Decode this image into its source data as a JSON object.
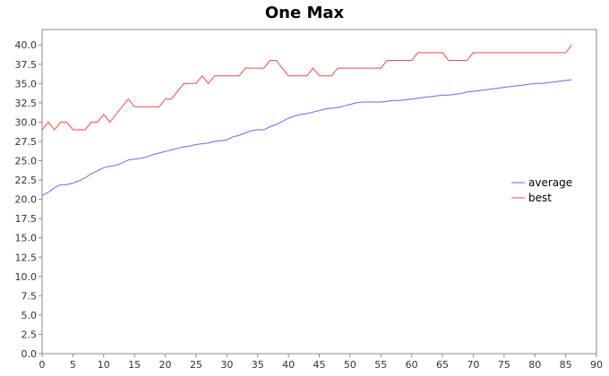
{
  "chart_data": {
    "type": "line",
    "title": "One Max",
    "xlabel": "",
    "ylabel": "",
    "xlim": [
      0,
      90
    ],
    "ylim": [
      0,
      42
    ],
    "x_ticks": [
      "0",
      "5",
      "10",
      "15",
      "20",
      "25",
      "30",
      "35",
      "40",
      "45",
      "50",
      "55",
      "60",
      "65",
      "70",
      "75",
      "80",
      "85",
      "90"
    ],
    "y_ticks": [
      "0.0",
      "2.5",
      "5.0",
      "7.5",
      "10.0",
      "12.5",
      "15.0",
      "17.5",
      "20.0",
      "22.5",
      "25.0",
      "27.5",
      "30.0",
      "32.5",
      "35.0",
      "37.5",
      "40.0"
    ],
    "grid": false,
    "legend_position": "right",
    "series": [
      {
        "name": "average",
        "color": "#6666ff",
        "x": [
          0,
          1,
          2,
          3,
          4,
          5,
          6,
          7,
          8,
          9,
          10,
          11,
          12,
          13,
          14,
          15,
          16,
          17,
          18,
          19,
          20,
          21,
          22,
          23,
          24,
          25,
          26,
          27,
          28,
          29,
          30,
          31,
          32,
          33,
          34,
          35,
          36,
          37,
          38,
          39,
          40,
          41,
          42,
          43,
          44,
          45,
          46,
          47,
          48,
          49,
          50,
          51,
          52,
          53,
          54,
          55,
          56,
          57,
          58,
          59,
          60,
          61,
          62,
          63,
          64,
          65,
          66,
          67,
          68,
          69,
          70,
          71,
          72,
          73,
          74,
          75,
          76,
          77,
          78,
          79,
          80,
          81,
          82,
          83,
          84,
          85,
          86
        ],
        "y": [
          20.5,
          20.9,
          21.5,
          21.9,
          21.9,
          22.1,
          22.4,
          22.8,
          23.3,
          23.7,
          24.1,
          24.3,
          24.4,
          24.7,
          25.1,
          25.2,
          25.3,
          25.5,
          25.8,
          26.0,
          26.2,
          26.4,
          26.6,
          26.8,
          26.9,
          27.1,
          27.2,
          27.3,
          27.5,
          27.6,
          27.7,
          28.1,
          28.3,
          28.6,
          28.9,
          29.0,
          29.0,
          29.4,
          29.7,
          30.1,
          30.5,
          30.8,
          31.0,
          31.1,
          31.3,
          31.5,
          31.7,
          31.8,
          31.9,
          32.1,
          32.3,
          32.5,
          32.6,
          32.6,
          32.6,
          32.6,
          32.7,
          32.8,
          32.8,
          32.9,
          33.0,
          33.1,
          33.2,
          33.3,
          33.4,
          33.5,
          33.5,
          33.6,
          33.7,
          33.9,
          34.0,
          34.1,
          34.2,
          34.3,
          34.4,
          34.5,
          34.6,
          34.7,
          34.8,
          34.9,
          35.0,
          35.0,
          35.1,
          35.2,
          35.3,
          35.4,
          35.5
        ]
      },
      {
        "name": "best",
        "color": "#ff4444",
        "x": [
          0,
          1,
          2,
          3,
          4,
          5,
          6,
          7,
          8,
          9,
          10,
          11,
          12,
          13,
          14,
          15,
          16,
          17,
          18,
          19,
          20,
          21,
          22,
          23,
          24,
          25,
          26,
          27,
          28,
          29,
          30,
          31,
          32,
          33,
          34,
          35,
          36,
          37,
          38,
          39,
          40,
          41,
          42,
          43,
          44,
          45,
          46,
          47,
          48,
          49,
          50,
          51,
          52,
          53,
          54,
          55,
          56,
          57,
          58,
          59,
          60,
          61,
          62,
          63,
          64,
          65,
          66,
          67,
          68,
          69,
          70,
          71,
          72,
          73,
          74,
          75,
          76,
          77,
          78,
          79,
          80,
          81,
          82,
          83,
          84,
          85,
          86
        ],
        "y": [
          29,
          30,
          29,
          30,
          30,
          29,
          29,
          29,
          30,
          30,
          31,
          30,
          31,
          32,
          33,
          32,
          32,
          32,
          32,
          32,
          33,
          33,
          34,
          35,
          35,
          35,
          36,
          35,
          36,
          36,
          36,
          36,
          36,
          37,
          37,
          37,
          37,
          38,
          38,
          37,
          36,
          36,
          36,
          36,
          37,
          36,
          36,
          36,
          37,
          37,
          37,
          37,
          37,
          37,
          37,
          37,
          38,
          38,
          38,
          38,
          38,
          39,
          39,
          39,
          39,
          39,
          38,
          38,
          38,
          38,
          39,
          39,
          39,
          39,
          39,
          39,
          39,
          39,
          39,
          39,
          39,
          39,
          39,
          39,
          39,
          39,
          40
        ]
      }
    ]
  }
}
